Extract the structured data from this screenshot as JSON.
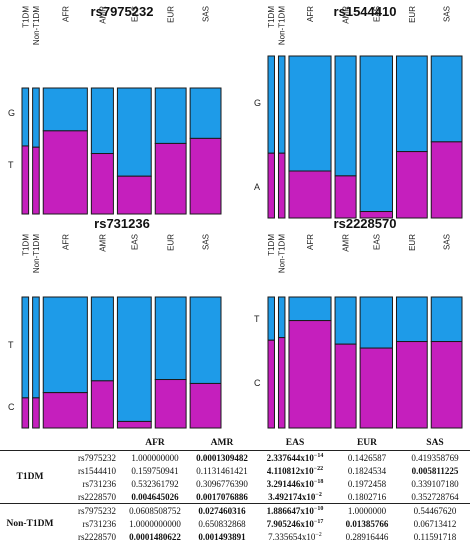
{
  "colors": {
    "top_allele": "#1e9be8",
    "bottom_allele": "#c51fbd",
    "border": "#1a1a1a"
  },
  "chart_data": [
    {
      "type": "mosaic",
      "title": "rs7975232",
      "categories": [
        "T1DM",
        "Non-T1DM",
        "AFR",
        "AMR",
        "EAS",
        "EUR",
        "SAS"
      ],
      "alleles": [
        "G",
        "T"
      ],
      "widths": [
        0.45,
        0.45,
        3,
        1.5,
        2.3,
        2.1,
        2.1
      ],
      "bottom_fraction": [
        0.54,
        0.53,
        0.66,
        0.48,
        0.3,
        0.56,
        0.6
      ]
    },
    {
      "type": "mosaic",
      "title": "rs1544410",
      "categories": [
        "T1DM",
        "Non-T1DM",
        "AFR",
        "AMR",
        "EAS",
        "EUR",
        "SAS"
      ],
      "alleles": [
        "G",
        "A"
      ],
      "widths": [
        0.4,
        0.4,
        2.6,
        1.3,
        2.0,
        1.9,
        1.9
      ],
      "bottom_fraction": [
        0.4,
        0.4,
        0.29,
        0.26,
        0.04,
        0.41,
        0.47
      ]
    },
    {
      "type": "mosaic",
      "title": "rs731236",
      "categories": [
        "T1DM",
        "Non-T1DM",
        "AFR",
        "AMR",
        "EAS",
        "EUR",
        "SAS"
      ],
      "alleles": [
        "T",
        "C"
      ],
      "widths": [
        0.45,
        0.45,
        3,
        1.5,
        2.3,
        2.1,
        2.1
      ],
      "bottom_fraction": [
        0.23,
        0.23,
        0.27,
        0.36,
        0.05,
        0.37,
        0.34
      ]
    },
    {
      "type": "mosaic",
      "title": "rs2228570",
      "categories": [
        "T1DM",
        "Non-T1DM",
        "AFR",
        "AMR",
        "EAS",
        "EUR",
        "SAS"
      ],
      "alleles": [
        "T",
        "C"
      ],
      "widths": [
        0.4,
        0.4,
        2.6,
        1.3,
        2.0,
        1.9,
        1.9
      ],
      "bottom_fraction": [
        0.67,
        0.69,
        0.82,
        0.64,
        0.61,
        0.66,
        0.66
      ]
    }
  ],
  "table": {
    "columns": [
      "AFR",
      "AMR",
      "EAS",
      "EUR",
      "SAS"
    ],
    "groups": [
      {
        "label": "T1DM",
        "rows": [
          {
            "snp": "rs7975232",
            "cells": [
              {
                "m": "1.000000000",
                "e": "",
                "bold": false
              },
              {
                "m": "0.0001309482",
                "e": "",
                "bold": true
              },
              {
                "m": "2.337644x10",
                "e": "−14",
                "bold": true
              },
              {
                "m": "0.1426587",
                "e": "",
                "bold": false
              },
              {
                "m": "0.419358769",
                "e": "",
                "bold": false
              }
            ]
          },
          {
            "snp": "rs1544410",
            "cells": [
              {
                "m": "0.159750941",
                "e": "",
                "bold": false
              },
              {
                "m": "0.1131461421",
                "e": "",
                "bold": false
              },
              {
                "m": "4.110812x10",
                "e": "−22",
                "bold": true
              },
              {
                "m": "0.1824534",
                "e": "",
                "bold": false
              },
              {
                "m": "0.005811225",
                "e": "",
                "bold": true
              }
            ]
          },
          {
            "snp": "rs731236",
            "cells": [
              {
                "m": "0.532361792",
                "e": "",
                "bold": false
              },
              {
                "m": "0.3096776390",
                "e": "",
                "bold": false
              },
              {
                "m": "3.291446x10",
                "e": "−18",
                "bold": true
              },
              {
                "m": "0.1972458",
                "e": "",
                "bold": false
              },
              {
                "m": "0.339107180",
                "e": "",
                "bold": false
              }
            ]
          },
          {
            "snp": "rs2228570",
            "cells": [
              {
                "m": "0.004645026",
                "e": "",
                "bold": true
              },
              {
                "m": "0.0017076886",
                "e": "",
                "bold": true
              },
              {
                "m": "3.492174x10",
                "e": "−2",
                "bold": true
              },
              {
                "m": "0.1802716",
                "e": "",
                "bold": false
              },
              {
                "m": "0.352728764",
                "e": "",
                "bold": false
              }
            ]
          }
        ]
      },
      {
        "label": "Non-T1DM",
        "rows": [
          {
            "snp": "rs7975232",
            "cells": [
              {
                "m": "0.0608508752",
                "e": "",
                "bold": false
              },
              {
                "m": "0.027460316",
                "e": "",
                "bold": true
              },
              {
                "m": "1.886647x10",
                "e": "−10",
                "bold": true
              },
              {
                "m": "1.0000000",
                "e": "",
                "bold": false
              },
              {
                "m": "0.54467620",
                "e": "",
                "bold": false
              }
            ]
          },
          {
            "snp": "rs731236",
            "cells": [
              {
                "m": "1.0000000000",
                "e": "",
                "bold": false
              },
              {
                "m": "0.650832868",
                "e": "",
                "bold": false
              },
              {
                "m": "7.905246x10",
                "e": "−17",
                "bold": true
              },
              {
                "m": "0.01385766",
                "e": "",
                "bold": true
              },
              {
                "m": "0.06713412",
                "e": "",
                "bold": false
              }
            ]
          },
          {
            "snp": "rs2228570",
            "cells": [
              {
                "m": "0.0001480622",
                "e": "",
                "bold": true
              },
              {
                "m": "0.001493891",
                "e": "",
                "bold": true
              },
              {
                "m": "7.335654x10",
                "e": "−2",
                "bold": false
              },
              {
                "m": "0.28916446",
                "e": "",
                "bold": false
              },
              {
                "m": "0.11591718",
                "e": "",
                "bold": false
              }
            ]
          }
        ]
      }
    ]
  }
}
